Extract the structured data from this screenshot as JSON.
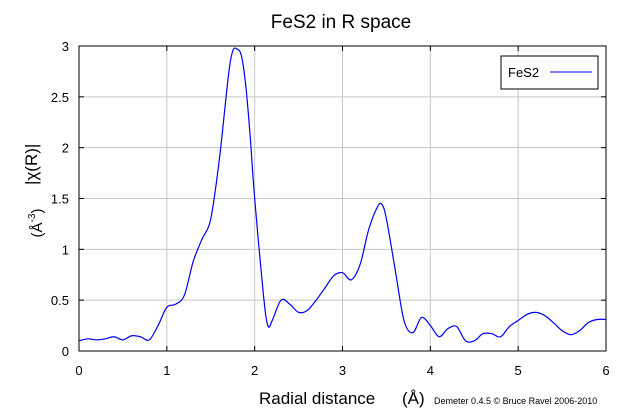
{
  "chart_data": {
    "type": "line",
    "title": "FeS2 in R space",
    "xlabel_text": "Radial distance",
    "xlabel_unit": "(Å)",
    "ylabel_main": "|χ(R)|",
    "ylabel_unit_base": "(Å",
    "ylabel_unit_exp": "-3",
    "ylabel_unit_close": ")",
    "xlim": [
      0,
      6
    ],
    "ylim": [
      0,
      3
    ],
    "xticks": [
      "0",
      "1",
      "2",
      "3",
      "4",
      "5",
      "6"
    ],
    "yticks": [
      "0",
      "0.5",
      "1",
      "1.5",
      "2",
      "2.5",
      "3"
    ],
    "grid": true,
    "legend_position": "top-right",
    "credit": "Demeter 0.4.5 © Bruce Ravel 2006-2010",
    "series": [
      {
        "name": "FeS2",
        "color": "#0000ff",
        "x": [
          0,
          0.1,
          0.2,
          0.3,
          0.4,
          0.5,
          0.6,
          0.7,
          0.8,
          0.9,
          1.0,
          1.1,
          1.2,
          1.3,
          1.4,
          1.5,
          1.6,
          1.7,
          1.75,
          1.8,
          1.85,
          1.9,
          1.95,
          2.0,
          2.1,
          2.15,
          2.2,
          2.3,
          2.4,
          2.5,
          2.6,
          2.7,
          2.8,
          2.9,
          3.0,
          3.1,
          3.2,
          3.3,
          3.4,
          3.45,
          3.5,
          3.6,
          3.7,
          3.8,
          3.9,
          4.0,
          4.1,
          4.2,
          4.3,
          4.4,
          4.5,
          4.6,
          4.7,
          4.8,
          4.9,
          5.0,
          5.1,
          5.2,
          5.3,
          5.4,
          5.5,
          5.6,
          5.7,
          5.8,
          5.9,
          6.0
        ],
        "y": [
          0.1,
          0.12,
          0.11,
          0.12,
          0.14,
          0.11,
          0.15,
          0.14,
          0.11,
          0.25,
          0.43,
          0.46,
          0.55,
          0.88,
          1.1,
          1.3,
          1.9,
          2.7,
          2.95,
          2.97,
          2.9,
          2.6,
          2.1,
          1.5,
          0.55,
          0.25,
          0.3,
          0.5,
          0.46,
          0.38,
          0.4,
          0.5,
          0.62,
          0.74,
          0.77,
          0.7,
          0.85,
          1.2,
          1.42,
          1.44,
          1.3,
          0.8,
          0.3,
          0.18,
          0.33,
          0.25,
          0.14,
          0.22,
          0.24,
          0.1,
          0.1,
          0.17,
          0.17,
          0.14,
          0.24,
          0.3,
          0.36,
          0.38,
          0.35,
          0.28,
          0.2,
          0.16,
          0.2,
          0.28,
          0.31,
          0.31
        ]
      }
    ]
  }
}
